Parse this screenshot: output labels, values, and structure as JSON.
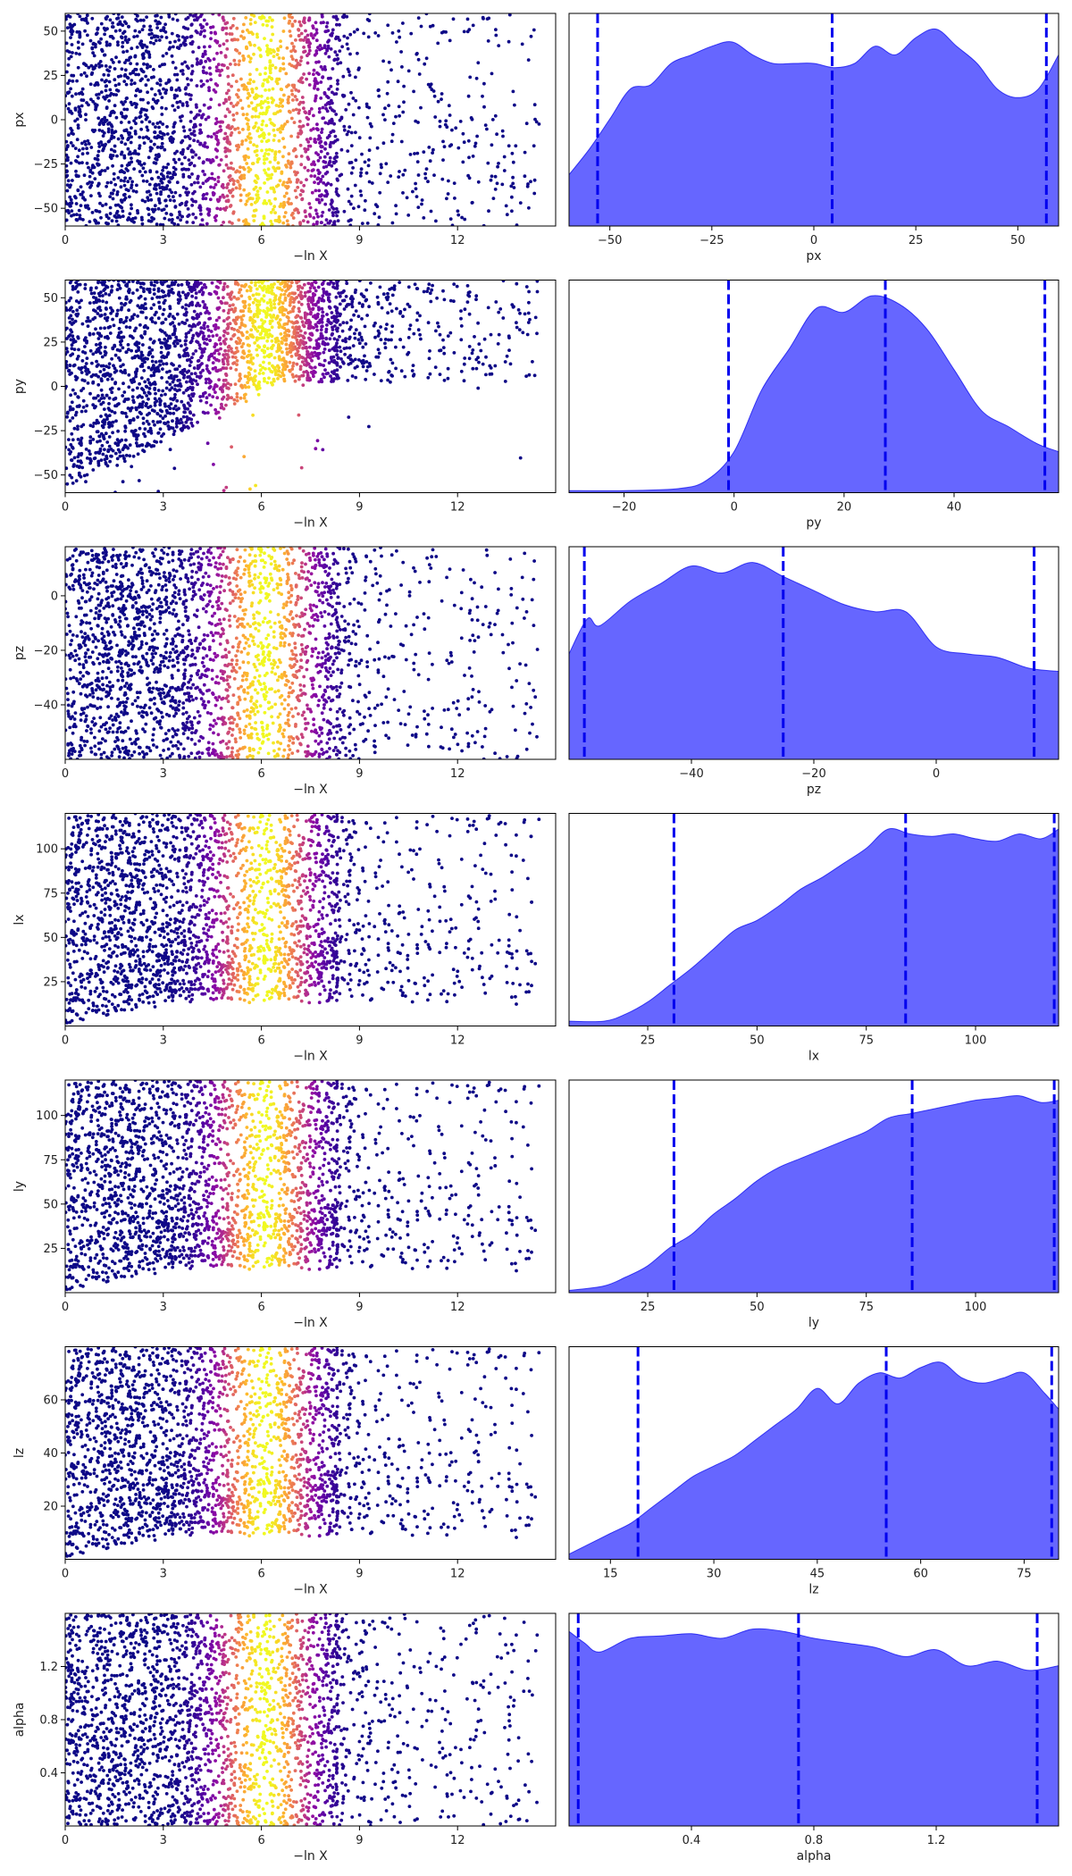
{
  "chart_data": [
    {
      "type": "scatter",
      "panel": "trace",
      "param": "px",
      "xlabel": "−ln X",
      "ylabel": "px",
      "xlim": [
        0,
        15
      ],
      "ylim": [
        -60,
        60
      ],
      "xticks": [
        {
          "v": 0,
          "label": "0"
        },
        {
          "v": 3,
          "label": "3"
        },
        {
          "v": 6,
          "label": "6"
        },
        {
          "v": 9,
          "label": "9"
        },
        {
          "v": 12,
          "label": "12"
        }
      ],
      "yticks": [
        {
          "v": -50,
          "label": "−50"
        },
        {
          "v": -25,
          "label": "−25"
        },
        {
          "v": 0,
          "label": "0"
        },
        {
          "v": 25,
          "label": "25"
        },
        {
          "v": 50,
          "label": "50"
        }
      ],
      "point_density": "uniform",
      "colormap": "plasma"
    },
    {
      "type": "area",
      "panel": "marginal",
      "param": "px",
      "xlabel": "px",
      "xlim": [
        -60,
        60
      ],
      "xticks": [
        {
          "v": -50,
          "label": "−50"
        },
        {
          "v": -25,
          "label": "−25"
        },
        {
          "v": 0,
          "label": "0"
        },
        {
          "v": 25,
          "label": "25"
        },
        {
          "v": 50,
          "label": "50"
        }
      ],
      "x": [
        -60,
        -55,
        -50,
        -45,
        -40,
        -35,
        -30,
        -25,
        -20,
        -15,
        -10,
        -5,
        0,
        5,
        10,
        15,
        20,
        25,
        30,
        35,
        40,
        45,
        50,
        55,
        60
      ],
      "y": [
        12,
        18,
        25,
        32,
        33,
        38,
        40,
        42,
        43,
        40,
        38,
        38,
        38,
        37,
        38,
        42,
        40,
        44,
        46,
        42,
        38,
        32,
        30,
        32,
        40
      ],
      "quantiles": [
        -53,
        4.5,
        57
      ],
      "fill_color": "#6666ff",
      "line_color": "#0000ee"
    },
    {
      "type": "scatter",
      "panel": "trace",
      "param": "py",
      "xlabel": "−ln X",
      "ylabel": "py",
      "xlim": [
        0,
        15
      ],
      "ylim": [
        -60,
        60
      ],
      "xticks": [
        {
          "v": 0,
          "label": "0"
        },
        {
          "v": 3,
          "label": "3"
        },
        {
          "v": 6,
          "label": "6"
        },
        {
          "v": 9,
          "label": "9"
        },
        {
          "v": 12,
          "label": "12"
        }
      ],
      "yticks": [
        {
          "v": -50,
          "label": "−50"
        },
        {
          "v": -25,
          "label": "−25"
        },
        {
          "v": 0,
          "label": "0"
        },
        {
          "v": 25,
          "label": "25"
        },
        {
          "v": 50,
          "label": "50"
        }
      ],
      "point_density": "constrained",
      "colormap": "plasma"
    },
    {
      "type": "area",
      "panel": "marginal",
      "param": "py",
      "xlabel": "py",
      "xlim": [
        -30,
        59
      ],
      "xticks": [
        {
          "v": -20,
          "label": "−20"
        },
        {
          "v": 0,
          "label": "0"
        },
        {
          "v": 20,
          "label": "20"
        },
        {
          "v": 40,
          "label": "40"
        }
      ],
      "x": [
        -30,
        -20,
        -10,
        -5,
        0,
        5,
        10,
        15,
        20,
        25,
        30,
        35,
        40,
        45,
        50,
        55,
        59
      ],
      "y": [
        0.5,
        0.5,
        1,
        3,
        10,
        25,
        35,
        45,
        44,
        48,
        46,
        40,
        30,
        20,
        16,
        12,
        10
      ],
      "quantiles": [
        -1,
        27.5,
        56.5
      ],
      "fill_color": "#6666ff",
      "line_color": "#0000ee"
    },
    {
      "type": "scatter",
      "panel": "trace",
      "param": "pz",
      "xlabel": "−ln X",
      "ylabel": "pz",
      "xlim": [
        0,
        15
      ],
      "ylim": [
        -60,
        18
      ],
      "xticks": [
        {
          "v": 0,
          "label": "0"
        },
        {
          "v": 3,
          "label": "3"
        },
        {
          "v": 6,
          "label": "6"
        },
        {
          "v": 9,
          "label": "9"
        },
        {
          "v": 12,
          "label": "12"
        }
      ],
      "yticks": [
        {
          "v": -40,
          "label": "−40"
        },
        {
          "v": -20,
          "label": "−20"
        },
        {
          "v": 0,
          "label": "0"
        }
      ],
      "point_density": "uniform",
      "colormap": "plasma"
    },
    {
      "type": "area",
      "panel": "marginal",
      "param": "pz",
      "xlabel": "pz",
      "xlim": [
        -60,
        20
      ],
      "xticks": [
        {
          "v": -40,
          "label": "−40"
        },
        {
          "v": -20,
          "label": "−20"
        },
        {
          "v": 0,
          "label": "0"
        }
      ],
      "x": [
        -60,
        -57,
        -55,
        -50,
        -45,
        -40,
        -35,
        -30,
        -25,
        -20,
        -15,
        -10,
        -5,
        0,
        5,
        10,
        15,
        20
      ],
      "y": [
        30,
        40,
        38,
        45,
        50,
        55,
        53,
        56,
        52,
        48,
        44,
        42,
        42,
        32,
        30,
        29,
        26,
        25
      ],
      "quantiles": [
        -57.5,
        -25,
        16
      ],
      "fill_color": "#6666ff",
      "line_color": "#0000ee"
    },
    {
      "type": "scatter",
      "panel": "trace",
      "param": "lx",
      "xlabel": "−ln X",
      "ylabel": "lx",
      "xlim": [
        0,
        15
      ],
      "ylim": [
        0,
        120
      ],
      "xticks": [
        {
          "v": 0,
          "label": "0"
        },
        {
          "v": 3,
          "label": "3"
        },
        {
          "v": 6,
          "label": "6"
        },
        {
          "v": 9,
          "label": "9"
        },
        {
          "v": 12,
          "label": "12"
        }
      ],
      "yticks": [
        {
          "v": 25,
          "label": "25"
        },
        {
          "v": 50,
          "label": "50"
        },
        {
          "v": 75,
          "label": "75"
        },
        {
          "v": 100,
          "label": "100"
        }
      ],
      "point_density": "lower-edge",
      "colormap": "plasma"
    },
    {
      "type": "area",
      "panel": "marginal",
      "param": "lx",
      "xlabel": "lx",
      "xlim": [
        7,
        119
      ],
      "xticks": [
        {
          "v": 25,
          "label": "25"
        },
        {
          "v": 50,
          "label": "50"
        },
        {
          "v": 75,
          "label": "75"
        },
        {
          "v": 100,
          "label": "100"
        }
      ],
      "x": [
        7,
        15,
        20,
        25,
        30,
        35,
        40,
        45,
        50,
        55,
        60,
        65,
        70,
        75,
        80,
        85,
        90,
        95,
        100,
        105,
        110,
        115,
        119
      ],
      "y": [
        2,
        2,
        5,
        10,
        17,
        24,
        32,
        40,
        44,
        50,
        57,
        62,
        68,
        74,
        82,
        80,
        79,
        80,
        78,
        77,
        80,
        78,
        82
      ],
      "quantiles": [
        31,
        84,
        118
      ],
      "fill_color": "#6666ff",
      "line_color": "#0000ee"
    },
    {
      "type": "scatter",
      "panel": "trace",
      "param": "ly",
      "xlabel": "−ln X",
      "ylabel": "ly",
      "xlim": [
        0,
        15
      ],
      "ylim": [
        0,
        120
      ],
      "xticks": [
        {
          "v": 0,
          "label": "0"
        },
        {
          "v": 3,
          "label": "3"
        },
        {
          "v": 6,
          "label": "6"
        },
        {
          "v": 9,
          "label": "9"
        },
        {
          "v": 12,
          "label": "12"
        }
      ],
      "yticks": [
        {
          "v": 25,
          "label": "25"
        },
        {
          "v": 50,
          "label": "50"
        },
        {
          "v": 75,
          "label": "75"
        },
        {
          "v": 100,
          "label": "100"
        }
      ],
      "point_density": "lower-edge",
      "colormap": "plasma"
    },
    {
      "type": "area",
      "panel": "marginal",
      "param": "ly",
      "xlabel": "ly",
      "xlim": [
        7,
        119
      ],
      "xticks": [
        {
          "v": 25,
          "label": "25"
        },
        {
          "v": 50,
          "label": "50"
        },
        {
          "v": 75,
          "label": "75"
        },
        {
          "v": 100,
          "label": "100"
        }
      ],
      "x": [
        7,
        15,
        20,
        25,
        30,
        35,
        40,
        45,
        50,
        55,
        60,
        65,
        70,
        75,
        80,
        85,
        90,
        95,
        100,
        105,
        110,
        115,
        119
      ],
      "y": [
        1,
        3,
        7,
        12,
        20,
        26,
        35,
        42,
        50,
        56,
        60,
        64,
        68,
        72,
        78,
        80,
        82,
        84,
        86,
        87,
        88,
        85,
        86
      ],
      "quantiles": [
        31,
        85.5,
        118
      ],
      "fill_color": "#6666ff",
      "line_color": "#0000ee"
    },
    {
      "type": "scatter",
      "panel": "trace",
      "param": "lz",
      "xlabel": "−ln X",
      "ylabel": "lz",
      "xlim": [
        0,
        15
      ],
      "ylim": [
        0,
        80
      ],
      "xticks": [
        {
          "v": 0,
          "label": "0"
        },
        {
          "v": 3,
          "label": "3"
        },
        {
          "v": 6,
          "label": "6"
        },
        {
          "v": 9,
          "label": "9"
        },
        {
          "v": 12,
          "label": "12"
        }
      ],
      "yticks": [
        {
          "v": 20,
          "label": "20"
        },
        {
          "v": 40,
          "label": "40"
        },
        {
          "v": 60,
          "label": "60"
        }
      ],
      "point_density": "lower-edge",
      "colormap": "plasma"
    },
    {
      "type": "area",
      "panel": "marginal",
      "param": "lz",
      "xlabel": "lz",
      "xlim": [
        9,
        80
      ],
      "xticks": [
        {
          "v": 15,
          "label": "15"
        },
        {
          "v": 30,
          "label": "30"
        },
        {
          "v": 45,
          "label": "45"
        },
        {
          "v": 60,
          "label": "60"
        },
        {
          "v": 75,
          "label": "75"
        }
      ],
      "x": [
        9,
        12,
        15,
        18,
        21,
        24,
        27,
        30,
        33,
        36,
        39,
        42,
        45,
        48,
        51,
        54,
        57,
        60,
        63,
        66,
        69,
        72,
        75,
        78,
        80
      ],
      "y": [
        2,
        6,
        10,
        14,
        20,
        26,
        32,
        36,
        40,
        46,
        52,
        58,
        66,
        60,
        68,
        72,
        70,
        74,
        76,
        70,
        68,
        70,
        72,
        64,
        58
      ],
      "quantiles": [
        19,
        55,
        79
      ],
      "fill_color": "#6666ff",
      "line_color": "#0000ee"
    },
    {
      "type": "scatter",
      "panel": "trace",
      "param": "alpha",
      "xlabel": "−ln X",
      "ylabel": "alpha",
      "xlim": [
        0,
        15
      ],
      "ylim": [
        0,
        1.6
      ],
      "xticks": [
        {
          "v": 0,
          "label": "0"
        },
        {
          "v": 3,
          "label": "3"
        },
        {
          "v": 6,
          "label": "6"
        },
        {
          "v": 9,
          "label": "9"
        },
        {
          "v": 12,
          "label": "12"
        }
      ],
      "yticks": [
        {
          "v": 0.4,
          "label": "0.4"
        },
        {
          "v": 0.8,
          "label": "0.8"
        },
        {
          "v": 1.2,
          "label": "1.2"
        }
      ],
      "point_density": "uniform",
      "colormap": "plasma"
    },
    {
      "type": "area",
      "panel": "marginal",
      "param": "alpha",
      "xlabel": "alpha",
      "xlim": [
        0,
        1.6
      ],
      "xticks": [
        {
          "v": 0.4,
          "label": "0.4"
        },
        {
          "v": 0.8,
          "label": "0.8"
        },
        {
          "v": 1.2,
          "label": "1.2"
        }
      ],
      "x": [
        0,
        0.05,
        0.1,
        0.2,
        0.3,
        0.4,
        0.5,
        0.6,
        0.7,
        0.8,
        0.9,
        1.0,
        1.1,
        1.2,
        1.3,
        1.4,
        1.5,
        1.6
      ],
      "y": [
        85,
        80,
        76,
        82,
        83,
        84,
        82,
        86,
        85,
        82,
        80,
        78,
        74,
        77,
        70,
        72,
        68,
        70
      ],
      "quantiles": [
        0.03,
        0.75,
        1.53
      ],
      "fill_color": "#6666ff",
      "line_color": "#0000ee"
    }
  ]
}
